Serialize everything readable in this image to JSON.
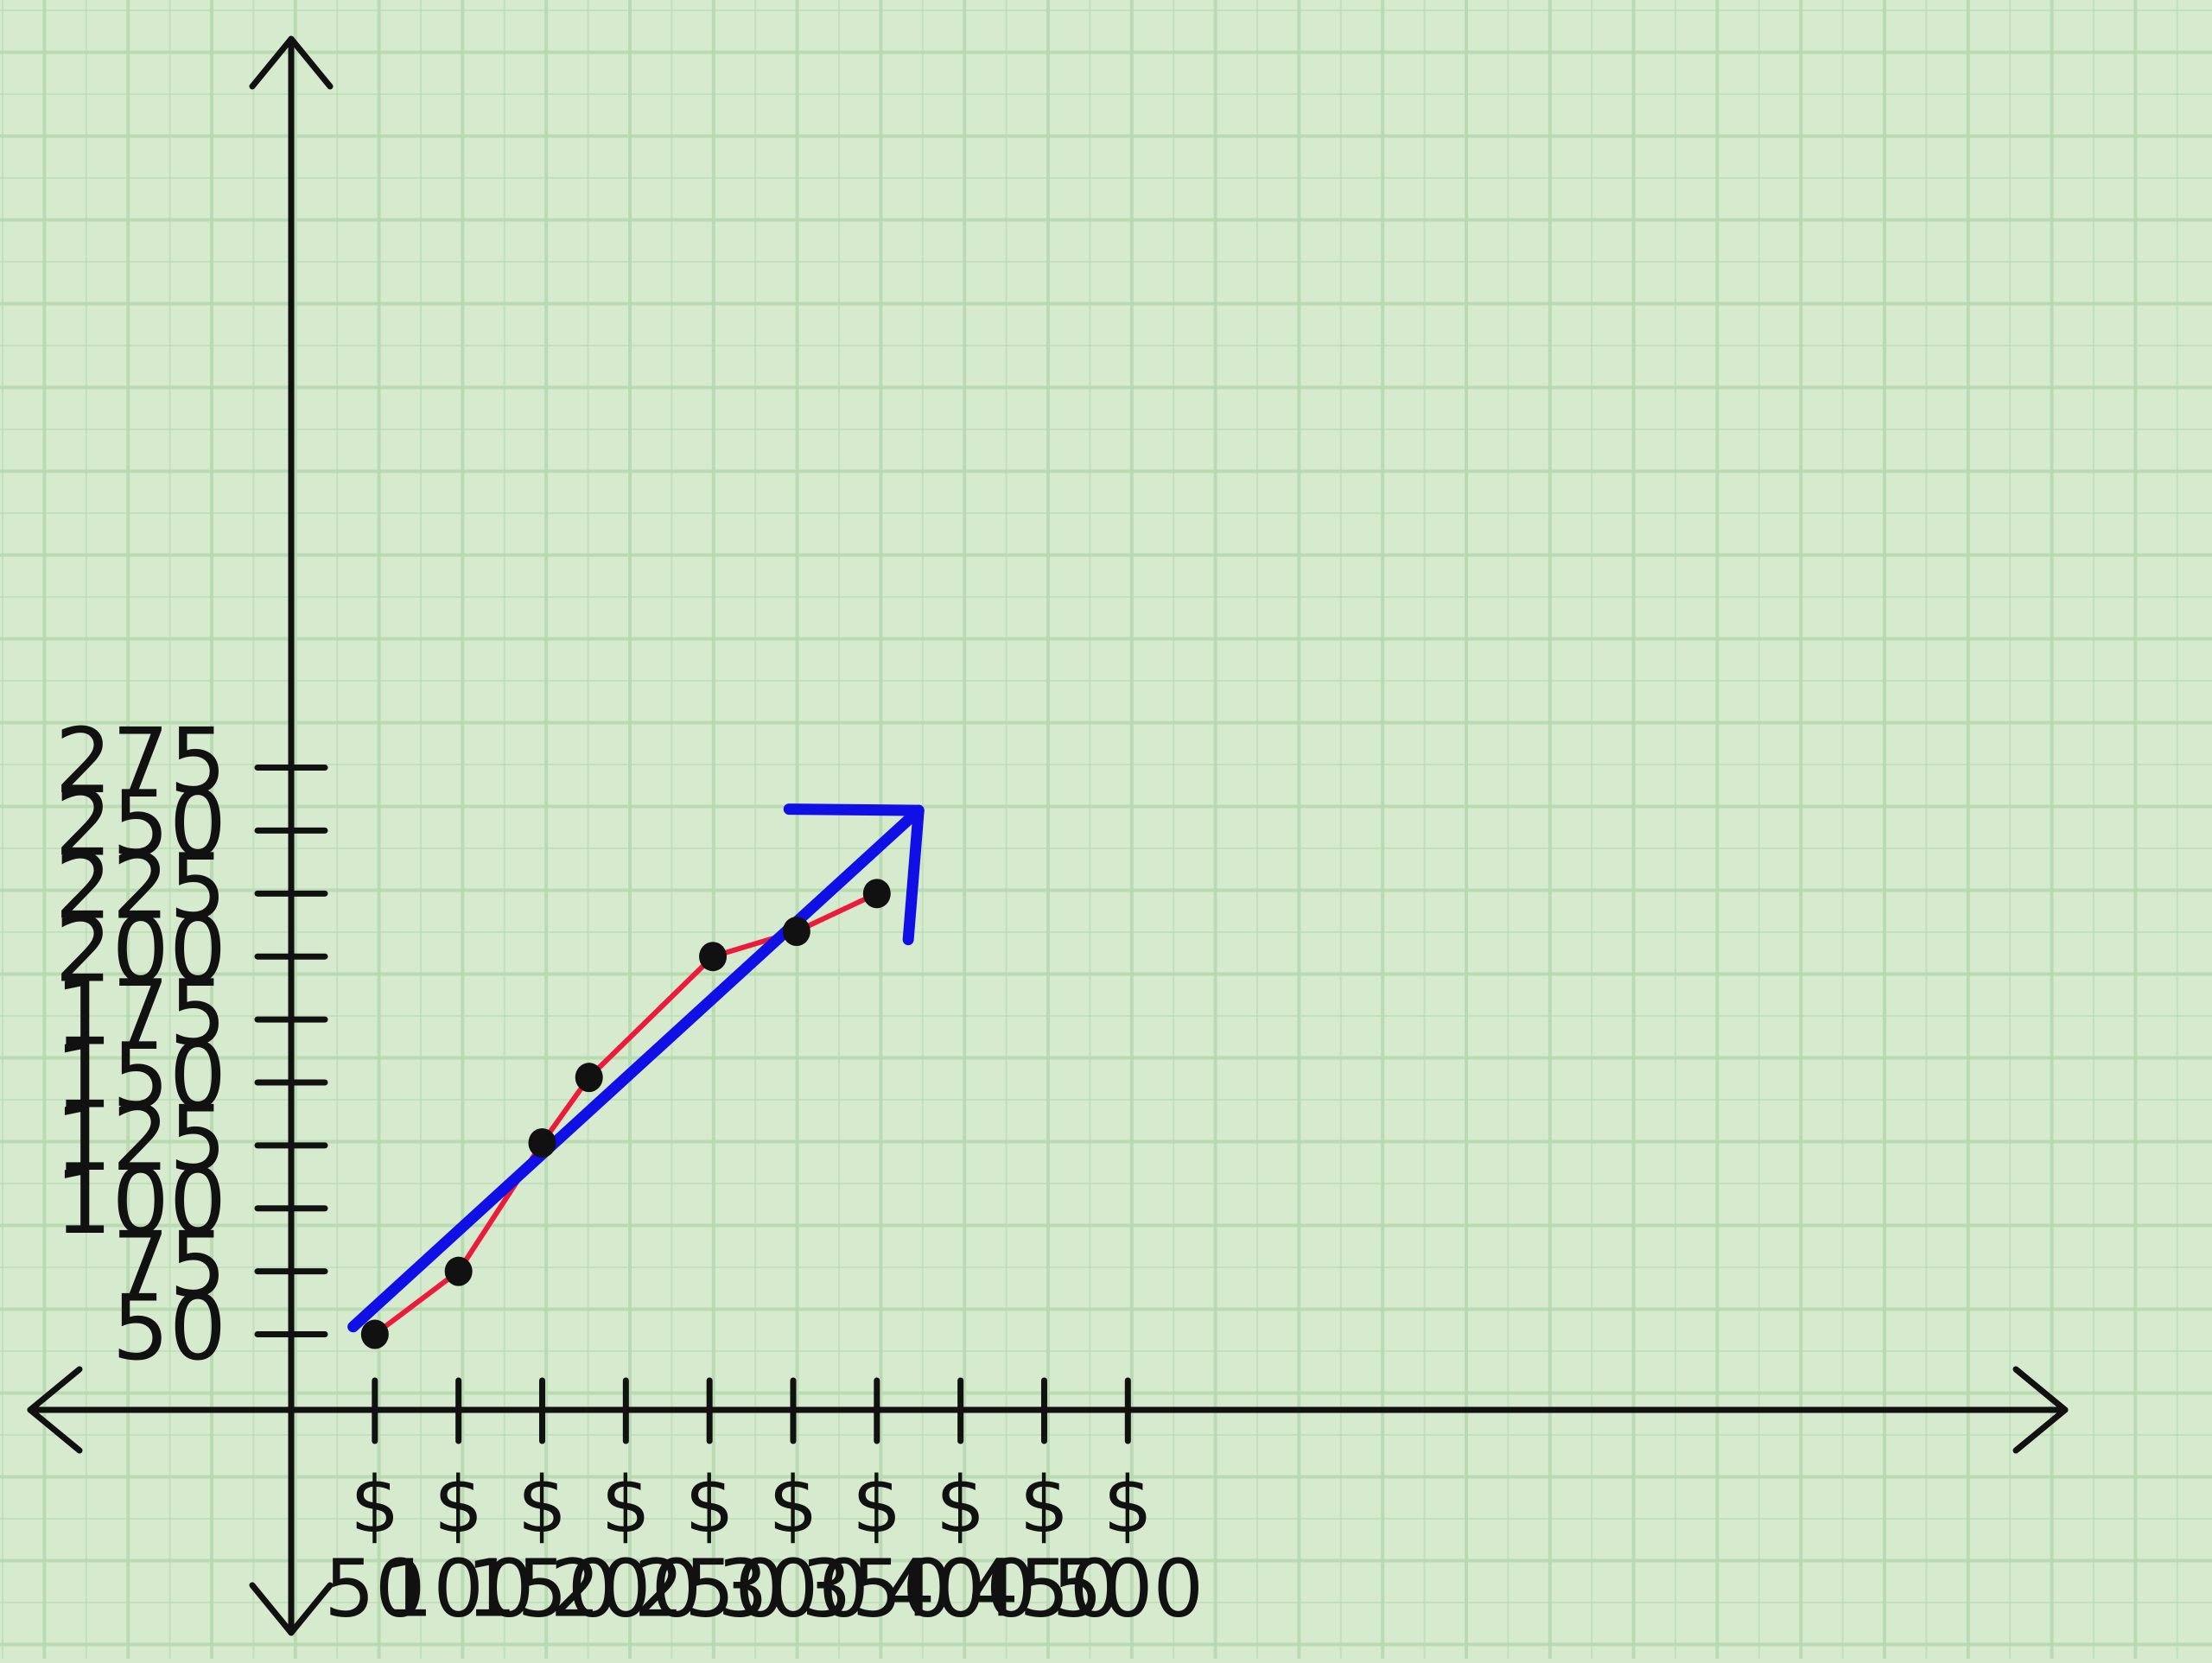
{
  "chart_data": {
    "type": "line",
    "title": "",
    "xlabel": "",
    "ylabel": "",
    "x_ticks": [
      {
        "value": 50,
        "symbol": "$",
        "label": "50"
      },
      {
        "value": 100,
        "symbol": "$",
        "label": "100"
      },
      {
        "value": 150,
        "symbol": "$",
        "label": "150"
      },
      {
        "value": 200,
        "symbol": "$",
        "label": "200"
      },
      {
        "value": 250,
        "symbol": "$",
        "label": "250"
      },
      {
        "value": 300,
        "symbol": "$",
        "label": "300"
      },
      {
        "value": 350,
        "symbol": "$",
        "label": "350"
      },
      {
        "value": 400,
        "symbol": "$",
        "label": "400"
      },
      {
        "value": 450,
        "symbol": "$",
        "label": "450"
      },
      {
        "value": 500,
        "symbol": "$",
        "label": "500"
      }
    ],
    "y_ticks": [
      "50",
      "75",
      "100",
      "125",
      "150",
      "175",
      "200",
      "225",
      "250",
      "275"
    ],
    "series": [
      {
        "color": "#ee1a3c",
        "points": [
          {
            "x": 50,
            "y": 50
          },
          {
            "x": 100,
            "y": 75
          },
          {
            "x": 150,
            "y": 126
          },
          {
            "x": 178,
            "y": 152
          },
          {
            "x": 252,
            "y": 200
          },
          {
            "x": 302,
            "y": 210
          },
          {
            "x": 350,
            "y": 225
          }
        ]
      }
    ],
    "trend_line": {
      "color": "#1010e6",
      "from": {
        "x": 37,
        "y": 53
      },
      "to": {
        "x": 375,
        "y": 258
      },
      "arrow_head": true
    },
    "grid": true,
    "grid_color": "#b6dab0",
    "axis_color": "#111111",
    "marker_color": "#111111",
    "background": "#d6ebce",
    "legend": "none"
  }
}
